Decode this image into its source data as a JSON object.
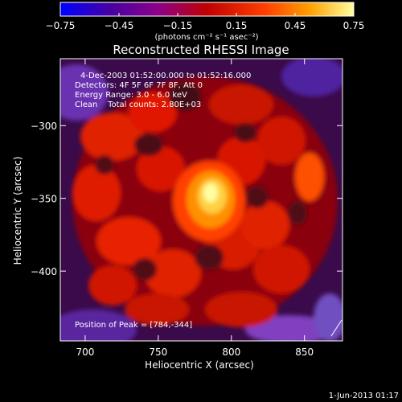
{
  "chart_data": {
    "type": "heatmap",
    "title": "Reconstructed RHESSI Image",
    "xlabel": "Heliocentric X (arcsec)",
    "ylabel": "Heliocentric Y (arcsec)",
    "xlim": [
      683,
      876
    ],
    "ylim": [
      -448,
      -254
    ],
    "x_ticks": [
      700,
      750,
      800,
      850
    ],
    "x_tick_labels": [
      "700",
      "750",
      "800",
      "850"
    ],
    "y_ticks": [
      -300,
      -350,
      -400
    ],
    "y_tick_labels": [
      "−300",
      "−350",
      "−400"
    ],
    "peak": {
      "x": 784,
      "y": -344,
      "value": 0.75
    },
    "colorbar": {
      "min": -0.75,
      "max": 0.75,
      "ticks": [
        -0.75,
        -0.45,
        -0.15,
        0.15,
        0.45,
        0.75
      ],
      "tick_labels": [
        "−0.75",
        "−0.45",
        "−0.15",
        "0.15",
        "0.45",
        "0.75"
      ],
      "units": "(photons cm⁻² s⁻¹ asec⁻²)",
      "colormap": [
        "#0000ff",
        "#4b0082",
        "#8b008b",
        "#b00000",
        "#ff3000",
        "#ff8c00",
        "#ffff80"
      ]
    },
    "annotations": {
      "time_range": "4-Dec-2003 01:52:00.000 to 01:52:16.000",
      "detectors": "Detectors: 4F 5F 6F 7F 8F, Att 0",
      "energy": "Energy Range: 3.0 - 6.0 keV",
      "clean": "Clean    Total counts: 2.80E+03",
      "peak_position": "Position of Peak = [784,-344]"
    },
    "grid": false
  },
  "footer_date": "1-Jun-2013 01:17"
}
